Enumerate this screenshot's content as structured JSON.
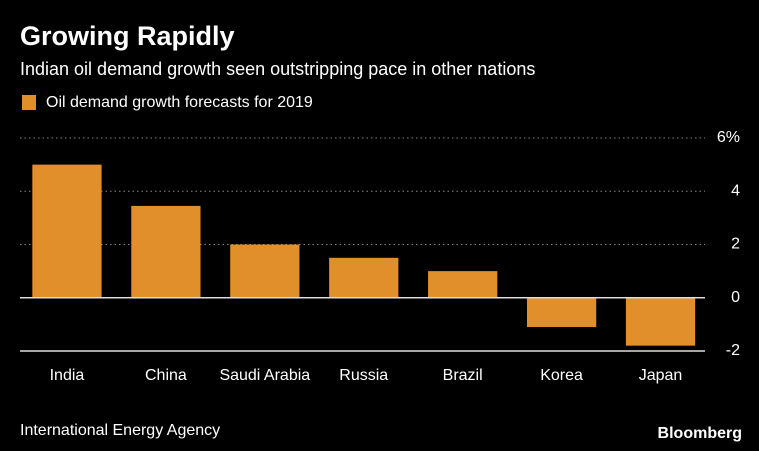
{
  "chart_data": {
    "type": "bar",
    "title": "Growing Rapidly",
    "subtitle": "Indian oil demand growth seen outstripping pace in other nations",
    "categories": [
      "India",
      "China",
      "Saudi Arabia",
      "Russia",
      "Brazil",
      "Korea",
      "Japan"
    ],
    "series": [
      {
        "name": "Oil demand growth forecasts for 2019",
        "color": "#e08f2a",
        "values": [
          5.0,
          3.45,
          2.0,
          1.5,
          1.0,
          -1.1,
          -1.8
        ]
      }
    ],
    "ylim": [
      -2,
      6
    ],
    "yticks": [
      {
        "value": 6,
        "label": "6%"
      },
      4,
      2,
      0,
      -2
    ],
    "grid": true,
    "source": "International Energy Agency",
    "brand": "Bloomberg"
  }
}
